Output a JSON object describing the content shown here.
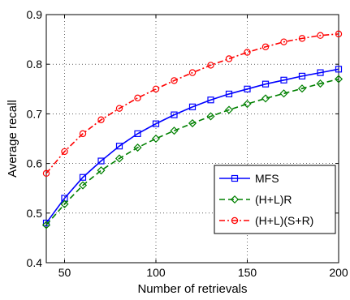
{
  "chart_data": {
    "type": "line",
    "xlabel": "Number of retrievals",
    "ylabel": "Average recall",
    "xlim": [
      40,
      200
    ],
    "ylim": [
      0.4,
      0.9
    ],
    "xticks": [
      50,
      100,
      150,
      200
    ],
    "yticks": [
      0.4,
      0.5,
      0.6,
      0.7,
      0.8,
      0.9
    ],
    "grid": true,
    "legend_position": "lower-right",
    "x": [
      40,
      50,
      60,
      70,
      80,
      90,
      100,
      110,
      120,
      130,
      140,
      150,
      160,
      170,
      180,
      190,
      200
    ],
    "series": [
      {
        "name": "MFS",
        "color": "#0000ff",
        "line_style": "solid",
        "marker": "square",
        "values": [
          0.48,
          0.53,
          0.572,
          0.605,
          0.635,
          0.66,
          0.68,
          0.698,
          0.714,
          0.728,
          0.74,
          0.75,
          0.76,
          0.768,
          0.776,
          0.783,
          0.79
        ]
      },
      {
        "name": "(H+L)R",
        "color": "#008000",
        "line_style": "dashed",
        "marker": "diamond",
        "values": [
          0.476,
          0.518,
          0.556,
          0.586,
          0.61,
          0.632,
          0.65,
          0.666,
          0.681,
          0.695,
          0.708,
          0.72,
          0.731,
          0.741,
          0.751,
          0.761,
          0.77
        ]
      },
      {
        "name": "(H+L)(S+R)",
        "color": "#ff0000",
        "line_style": "dash-dot",
        "marker": "circle",
        "values": [
          0.58,
          0.624,
          0.66,
          0.688,
          0.711,
          0.732,
          0.75,
          0.767,
          0.783,
          0.798,
          0.811,
          0.824,
          0.835,
          0.845,
          0.852,
          0.858,
          0.861
        ]
      }
    ]
  }
}
